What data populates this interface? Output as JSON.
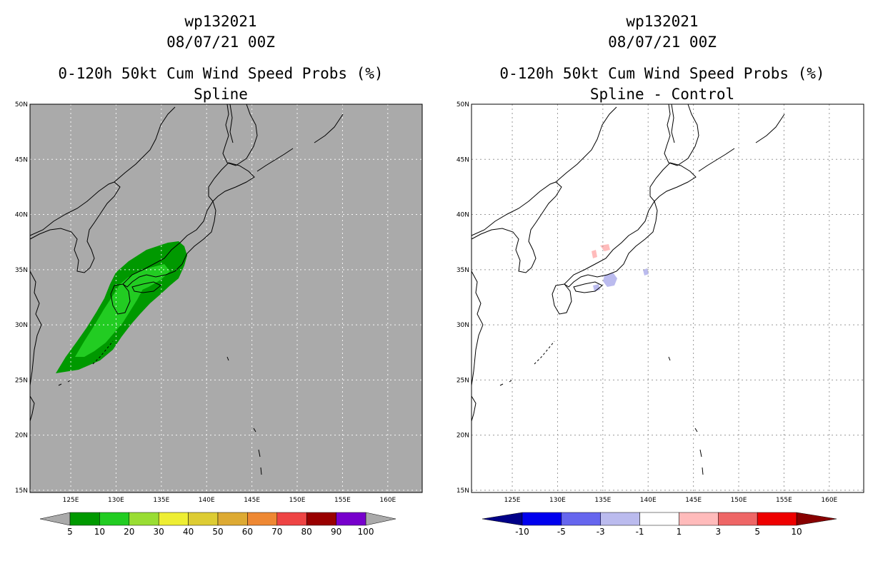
{
  "panels": [
    {
      "id": "left",
      "storm": "wp132021",
      "datetime": "08/07/21 00Z",
      "product": "0-120h 50kt Cum Wind Speed Probs (%)",
      "subtitle": "Spline",
      "map_background": "#aaaaaa",
      "colorbar": {
        "colors": [
          "#009900",
          "#22cc22",
          "#99dd33",
          "#eeee33",
          "#ddcc33",
          "#ddaa33",
          "#ee8833",
          "#ee4444",
          "#990000",
          "#7700cc"
        ],
        "end_colors": [
          "#aaaaaa",
          "#aaaaaa"
        ],
        "labels": [
          "5",
          "10",
          "20",
          "30",
          "40",
          "50",
          "60",
          "70",
          "80",
          "90",
          "100"
        ]
      }
    },
    {
      "id": "right",
      "storm": "wp132021",
      "datetime": "08/07/21 00Z",
      "product": "0-120h 50kt Cum Wind Speed Probs (%)",
      "subtitle": "Spline - Control",
      "map_background": "#ffffff",
      "colorbar": {
        "colors": [
          "#0000ee",
          "#6666ee",
          "#bbbbee",
          "#ffffff",
          "#ffbbbb",
          "#ee6666",
          "#ee0000"
        ],
        "end_colors": [
          "#000088",
          "#880000"
        ],
        "labels": [
          "-10",
          "-5",
          "-3",
          "-1",
          "1",
          "3",
          "5",
          "10"
        ]
      }
    }
  ],
  "axes": {
    "lat_labels": [
      "50N",
      "45N",
      "40N",
      "35N",
      "30N",
      "25N",
      "20N",
      "15N"
    ],
    "lat_values": [
      50,
      45,
      40,
      35,
      30,
      25,
      20,
      15
    ],
    "lon_labels": [
      "125E",
      "130E",
      "135E",
      "140E",
      "145E",
      "150E",
      "155E",
      "160E"
    ],
    "lon_values": [
      125,
      130,
      135,
      140,
      145,
      150,
      155,
      160
    ],
    "lon_range": [
      120.5,
      163.8
    ],
    "lat_range": [
      14.8,
      50
    ]
  }
}
